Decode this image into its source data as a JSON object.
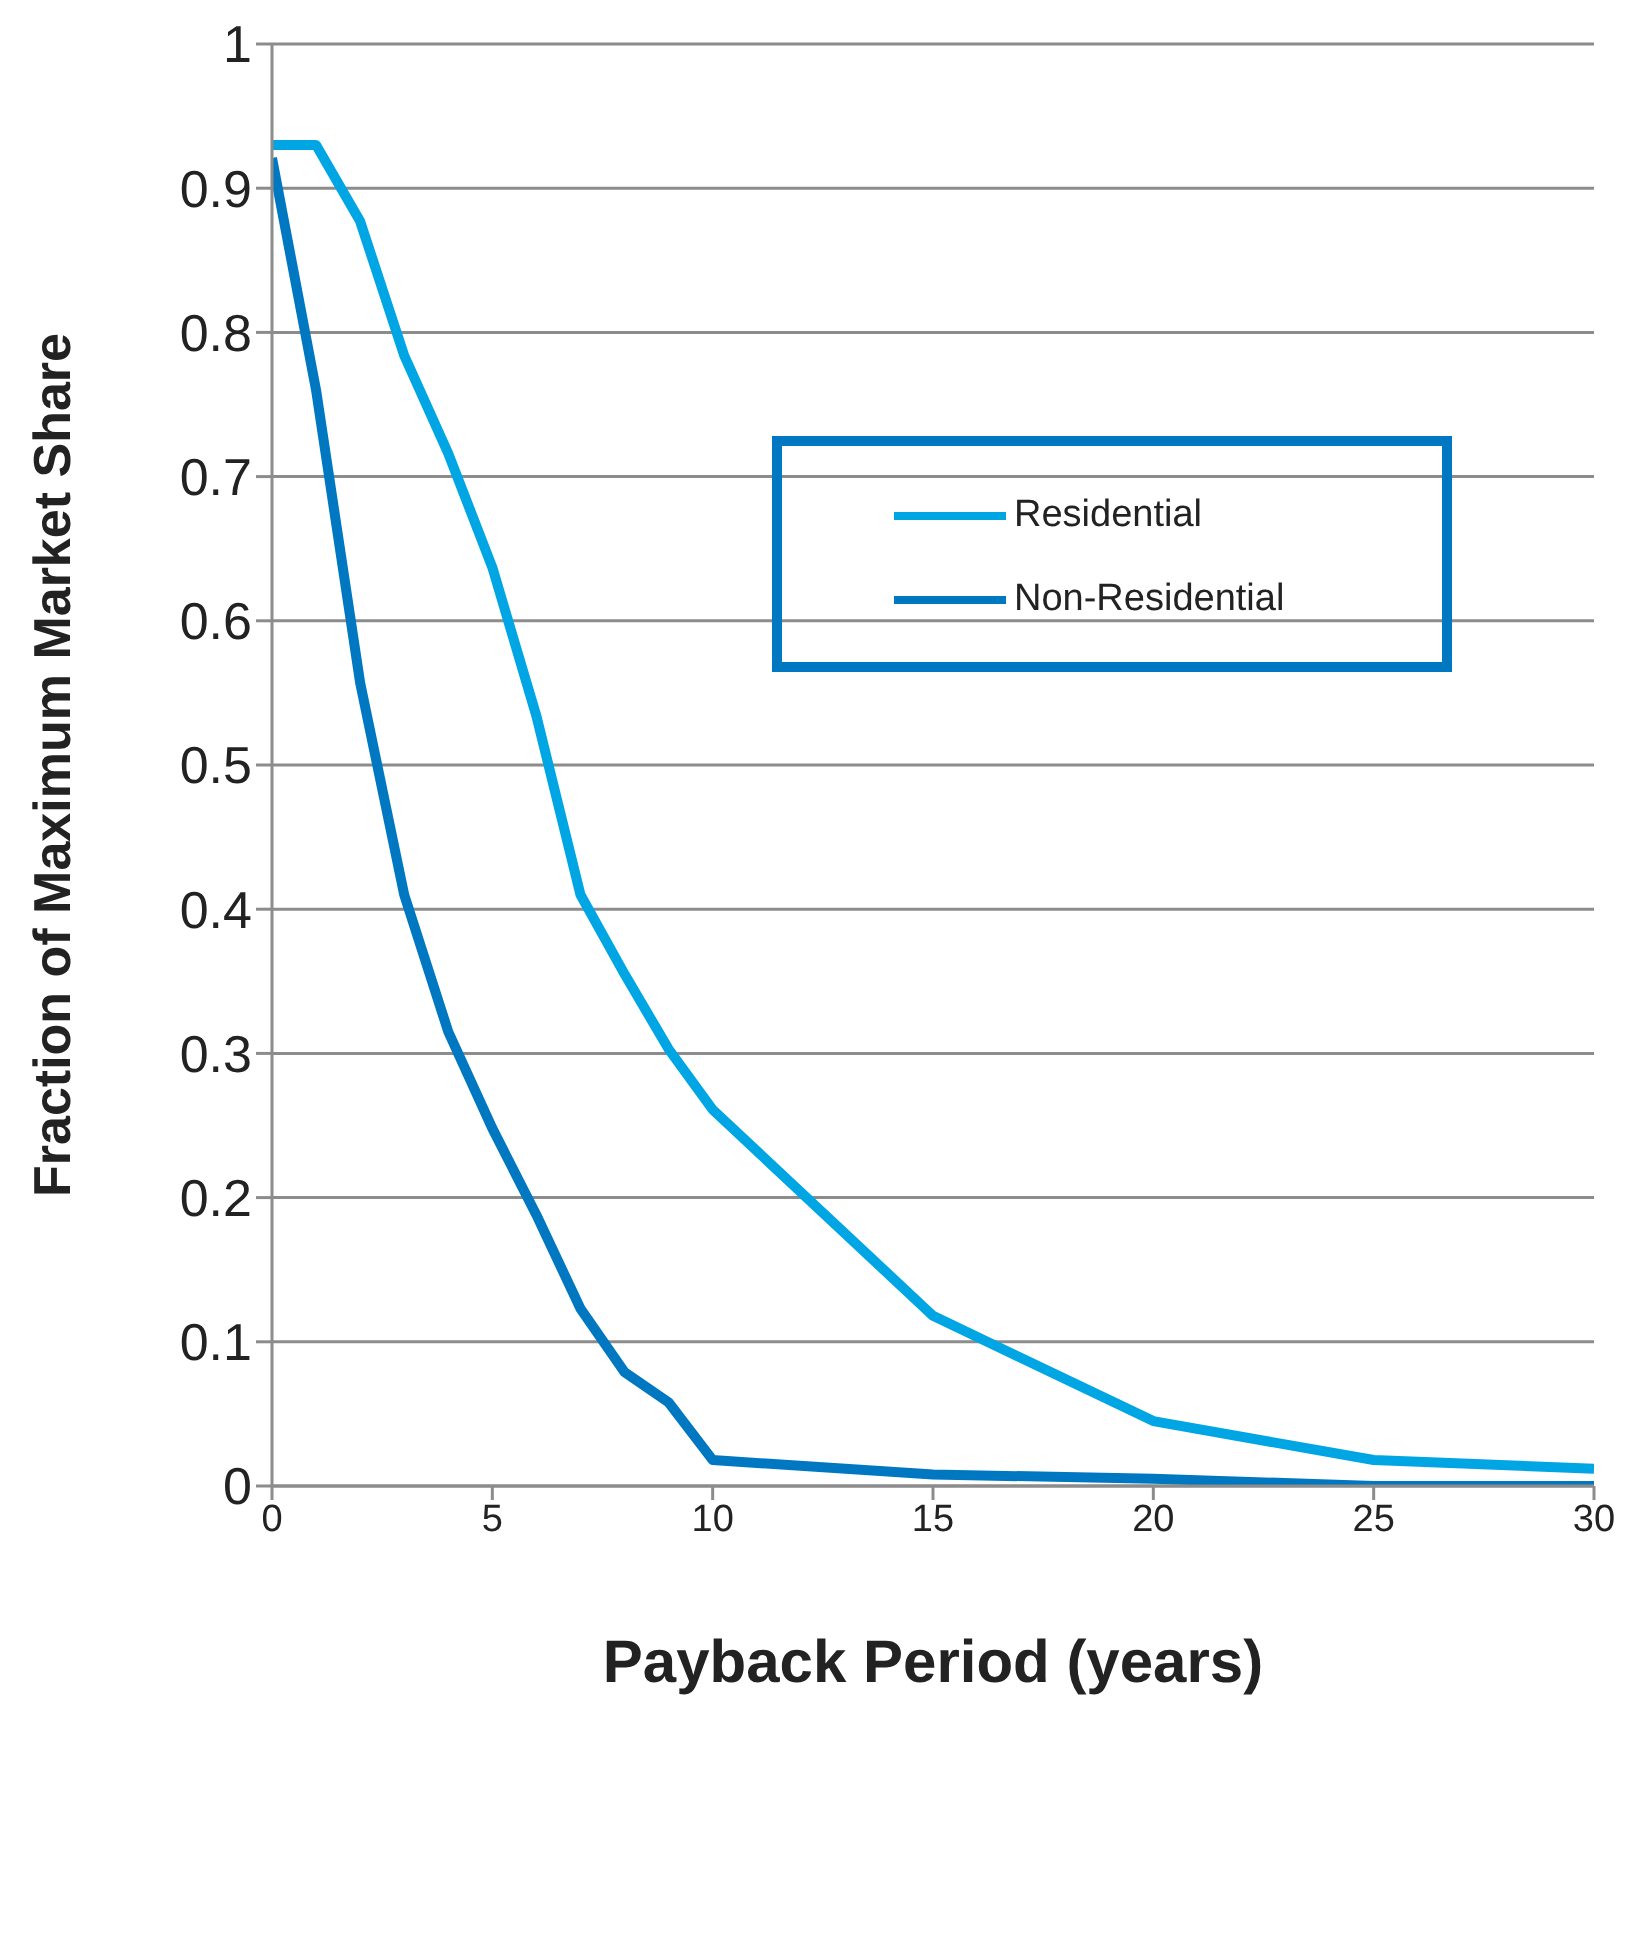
{
  "chart_data": {
    "type": "line",
    "xlabel": "Payback Period (years)",
    "ylabel": "Fraction of Maximum Market Share",
    "xlim": [
      0,
      30
    ],
    "xticks": [
      0,
      5,
      10,
      15,
      20,
      25,
      30
    ],
    "ylim": [
      0,
      1
    ],
    "yticks": [
      0,
      0.1,
      0.2,
      0.3,
      0.4,
      0.5,
      0.6,
      0.7,
      0.8,
      0.9,
      1
    ],
    "grid": "y",
    "legend": "top right",
    "marker": "none",
    "line_style": "solid",
    "series": [
      {
        "name": "Residential",
        "color": "#00a6e4",
        "x": [
          0,
          1,
          2,
          3,
          4,
          5,
          6,
          7,
          8,
          9,
          10,
          15,
          20,
          25,
          30
        ],
        "values": [
          0.93,
          0.93,
          0.877,
          0.784,
          0.716,
          0.637,
          0.534,
          0.41,
          0.355,
          0.303,
          0.261,
          0.118,
          0.045,
          0.018,
          0.012
        ]
      },
      {
        "name": "Non-Residential",
        "color": "#0078c1",
        "x": [
          0,
          1,
          2,
          3,
          4,
          5,
          6,
          7,
          8,
          9,
          10,
          15,
          20,
          25,
          30
        ],
        "values": [
          0.921,
          0.76,
          0.557,
          0.41,
          0.315,
          0.248,
          0.188,
          0.123,
          0.079,
          0.058,
          0.018,
          0.008,
          0.005,
          0,
          0
        ]
      }
    ]
  }
}
